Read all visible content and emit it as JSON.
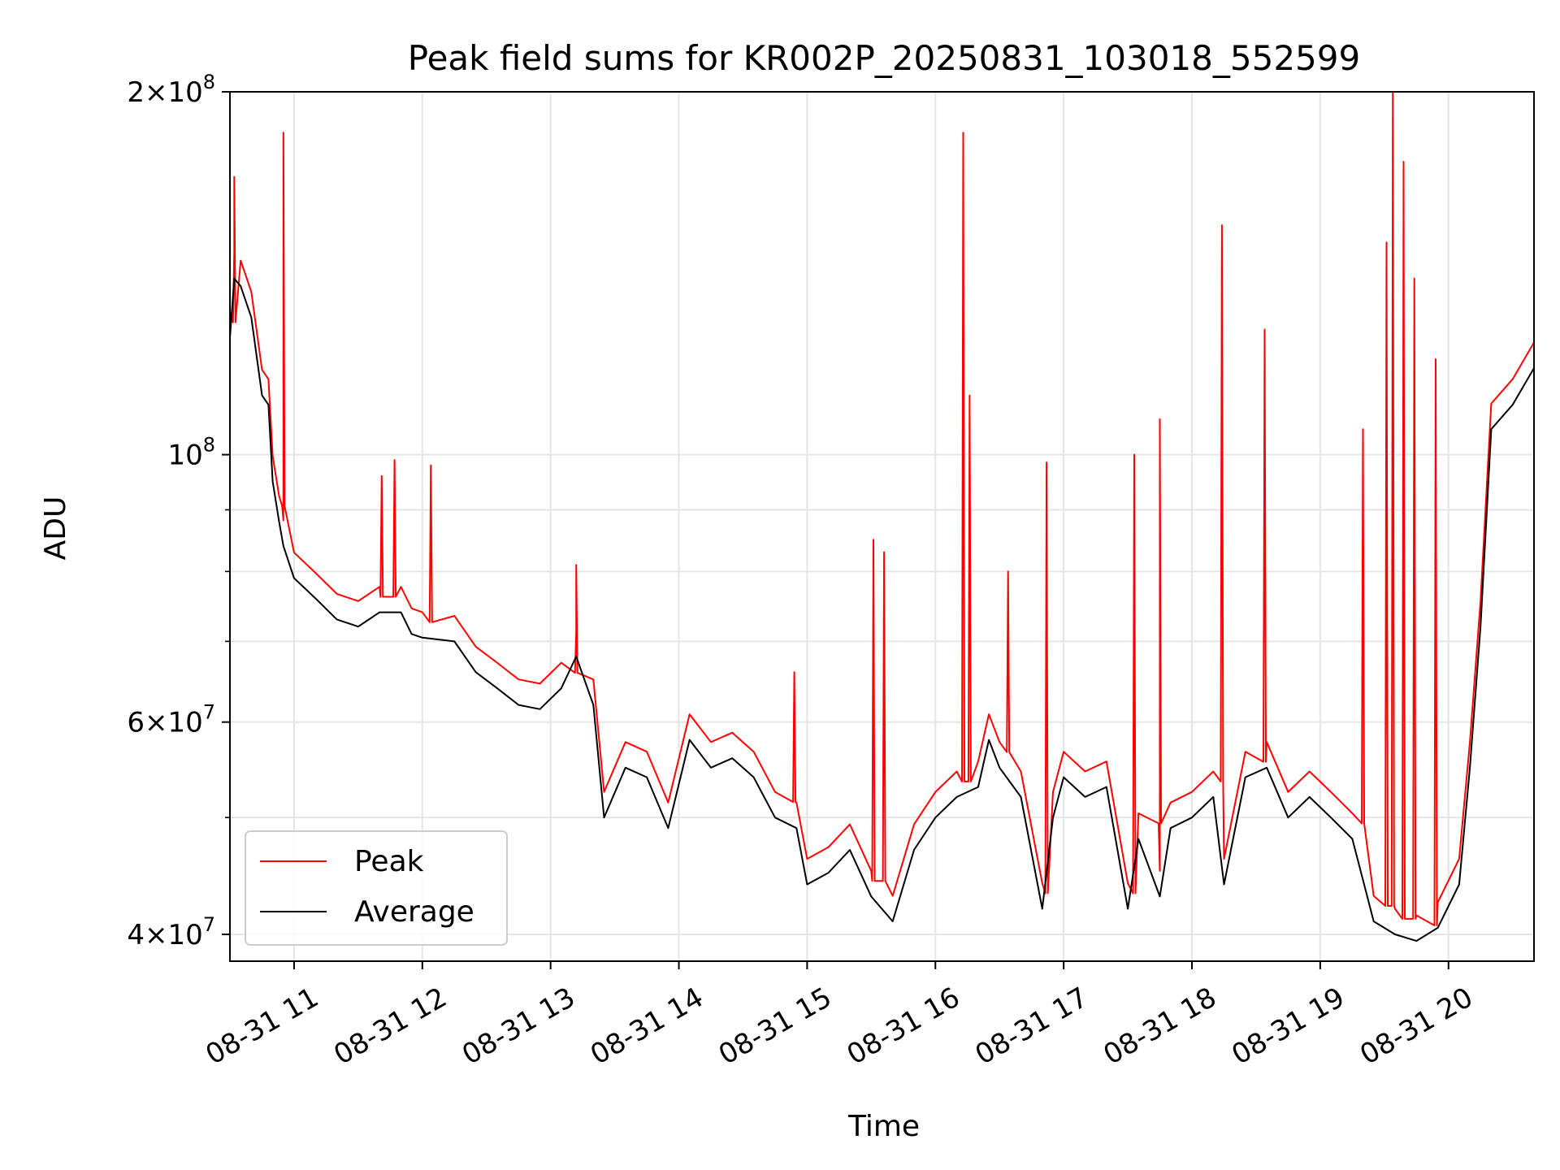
{
  "chart_data": {
    "type": "line",
    "title": "Peak field sums for KR002P_20250831_103018_552599",
    "xlabel": "Time",
    "ylabel": "ADU",
    "yscale": "log",
    "xlim": [
      "2025-08-31 10:30",
      "2025-08-31 20:40"
    ],
    "ylim": [
      38000000,
      200000000
    ],
    "x_ticks": [
      {
        "value": "2025-08-31 11:00",
        "label": "08-31 11"
      },
      {
        "value": "2025-08-31 12:00",
        "label": "08-31 12"
      },
      {
        "value": "2025-08-31 13:00",
        "label": "08-31 13"
      },
      {
        "value": "2025-08-31 14:00",
        "label": "08-31 14"
      },
      {
        "value": "2025-08-31 15:00",
        "label": "08-31 15"
      },
      {
        "value": "2025-08-31 16:00",
        "label": "08-31 16"
      },
      {
        "value": "2025-08-31 17:00",
        "label": "08-31 17"
      },
      {
        "value": "2025-08-31 18:00",
        "label": "08-31 18"
      },
      {
        "value": "2025-08-31 19:00",
        "label": "08-31 19"
      },
      {
        "value": "2025-08-31 20:00",
        "label": "08-31 20"
      }
    ],
    "y_ticks": [
      {
        "value": 40000000,
        "base": "4×10",
        "exp": "7"
      },
      {
        "value": 60000000,
        "base": "6×10",
        "exp": "7"
      },
      {
        "value": 100000000,
        "base": "10",
        "exp": "8"
      },
      {
        "value": 200000000,
        "base": "2×10",
        "exp": "8"
      }
    ],
    "y_minor_ticks": [
      50000000,
      70000000,
      80000000,
      90000000
    ],
    "grid": true,
    "legend_position": "lower-left",
    "series": [
      {
        "name": "Average",
        "color": "#000000",
        "x": [
          "2025-08-31 10:30",
          "2025-08-31 10:32",
          "2025-08-31 10:35",
          "2025-08-31 10:40",
          "2025-08-31 10:45",
          "2025-08-31 10:48",
          "2025-08-31 10:50",
          "2025-08-31 10:53",
          "2025-08-31 10:55",
          "2025-08-31 11:00",
          "2025-08-31 11:10",
          "2025-08-31 11:20",
          "2025-08-31 11:30",
          "2025-08-31 11:40",
          "2025-08-31 11:50",
          "2025-08-31 11:55",
          "2025-08-31 12:00",
          "2025-08-31 12:15",
          "2025-08-31 12:25",
          "2025-08-31 12:35",
          "2025-08-31 12:45",
          "2025-08-31 12:55",
          "2025-08-31 13:05",
          "2025-08-31 13:12",
          "2025-08-31 13:20",
          "2025-08-31 13:25",
          "2025-08-31 13:35",
          "2025-08-31 13:45",
          "2025-08-31 13:55",
          "2025-08-31 14:05",
          "2025-08-31 14:15",
          "2025-08-31 14:25",
          "2025-08-31 14:35",
          "2025-08-31 14:45",
          "2025-08-31 14:55",
          "2025-08-31 15:00",
          "2025-08-31 15:10",
          "2025-08-31 15:20",
          "2025-08-31 15:30",
          "2025-08-31 15:40",
          "2025-08-31 15:50",
          "2025-08-31 16:00",
          "2025-08-31 16:10",
          "2025-08-31 16:20",
          "2025-08-31 16:25",
          "2025-08-31 16:30",
          "2025-08-31 16:40",
          "2025-08-31 16:50",
          "2025-08-31 16:55",
          "2025-08-31 17:00",
          "2025-08-31 17:10",
          "2025-08-31 17:20",
          "2025-08-31 17:30",
          "2025-08-31 17:35",
          "2025-08-31 17:45",
          "2025-08-31 17:50",
          "2025-08-31 18:00",
          "2025-08-31 18:10",
          "2025-08-31 18:15",
          "2025-08-31 18:25",
          "2025-08-31 18:35",
          "2025-08-31 18:45",
          "2025-08-31 18:55",
          "2025-08-31 19:05",
          "2025-08-31 19:15",
          "2025-08-31 19:25",
          "2025-08-31 19:35",
          "2025-08-31 19:45",
          "2025-08-31 19:55",
          "2025-08-31 20:05",
          "2025-08-31 20:10",
          "2025-08-31 20:15",
          "2025-08-31 20:20",
          "2025-08-31 20:30",
          "2025-08-31 20:40"
        ],
        "y": [
          125000000,
          140000000,
          138000000,
          130000000,
          112000000,
          110000000,
          95000000,
          88000000,
          84000000,
          79000000,
          76000000,
          73000000,
          72000000,
          74000000,
          74000000,
          71000000,
          70500000,
          70000000,
          66000000,
          64000000,
          62000000,
          61500000,
          64000000,
          68000000,
          62000000,
          50000000,
          55000000,
          54000000,
          49000000,
          58000000,
          55000000,
          56000000,
          54000000,
          50000000,
          49000000,
          44000000,
          45000000,
          47000000,
          43000000,
          41000000,
          47000000,
          50000000,
          52000000,
          53000000,
          58000000,
          55000000,
          52000000,
          42000000,
          50000000,
          54000000,
          52000000,
          53000000,
          42000000,
          48000000,
          43000000,
          49000000,
          50000000,
          52000000,
          44000000,
          54000000,
          55000000,
          50000000,
          52000000,
          50000000,
          48000000,
          41000000,
          40000000,
          39500000,
          40500000,
          44000000,
          55000000,
          72000000,
          105000000,
          110000000,
          118000000
        ]
      },
      {
        "name": "Peak",
        "color": "#ff0000",
        "spikes": [
          {
            "x": "2025-08-31 10:32",
            "y": 170000000
          },
          {
            "x": "2025-08-31 10:55",
            "y": 185000000
          },
          {
            "x": "2025-08-31 11:41",
            "y": 96000000
          },
          {
            "x": "2025-08-31 11:47",
            "y": 99000000
          },
          {
            "x": "2025-08-31 12:04",
            "y": 98000000
          },
          {
            "x": "2025-08-31 13:12",
            "y": 81000000
          },
          {
            "x": "2025-08-31 14:54",
            "y": 66000000
          },
          {
            "x": "2025-08-31 15:31",
            "y": 85000000
          },
          {
            "x": "2025-08-31 15:36",
            "y": 83000000
          },
          {
            "x": "2025-08-31 16:13",
            "y": 185000000
          },
          {
            "x": "2025-08-31 16:16",
            "y": 112000000
          },
          {
            "x": "2025-08-31 16:34",
            "y": 80000000
          },
          {
            "x": "2025-08-31 16:52",
            "y": 98500000
          },
          {
            "x": "2025-08-31 17:33",
            "y": 100000000
          },
          {
            "x": "2025-08-31 17:45",
            "y": 107000000
          },
          {
            "x": "2025-08-31 18:14",
            "y": 155000000
          },
          {
            "x": "2025-08-31 18:34",
            "y": 127000000
          },
          {
            "x": "2025-08-31 19:20",
            "y": 105000000
          },
          {
            "x": "2025-08-31 19:31",
            "y": 150000000
          },
          {
            "x": "2025-08-31 19:34",
            "y": 200000000
          },
          {
            "x": "2025-08-31 19:39",
            "y": 175000000
          },
          {
            "x": "2025-08-31 19:44",
            "y": 140000000
          },
          {
            "x": "2025-08-31 19:54",
            "y": 120000000
          }
        ]
      }
    ]
  }
}
